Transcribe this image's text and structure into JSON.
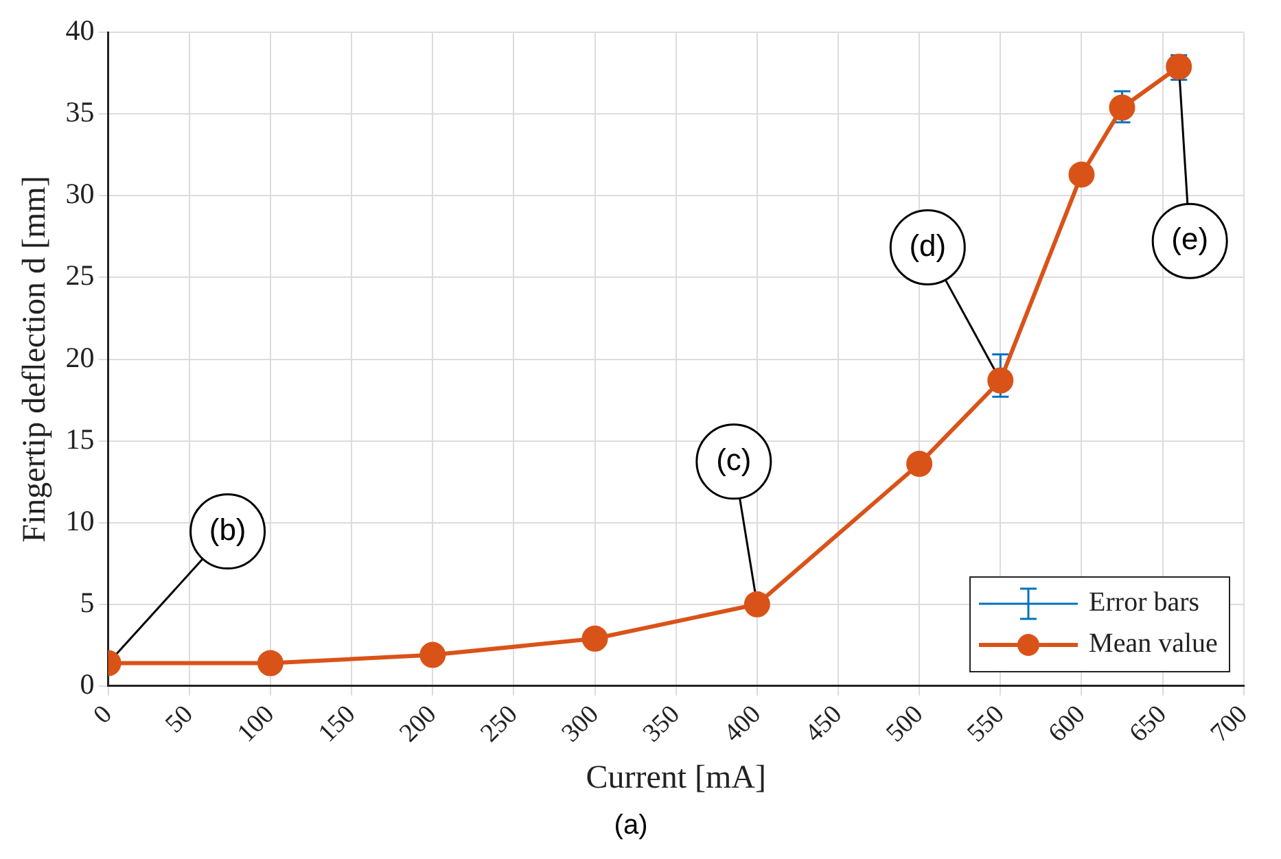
{
  "chart_data": {
    "type": "line",
    "title": "(a)",
    "xlabel": "Current [mA]",
    "ylabel": "Fingertip deflection d [mm]",
    "x": [
      0,
      100,
      200,
      300,
      400,
      500,
      550,
      600,
      625,
      660
    ],
    "series": [
      {
        "name": "Mean value",
        "color": "#d95319",
        "values": [
          1.4,
          1.4,
          1.9,
          2.9,
          5.0,
          13.6,
          18.7,
          31.3,
          35.4,
          37.9
        ],
        "errors": [
          null,
          null,
          null,
          null,
          null,
          null,
          [
            17.7,
            20.3
          ],
          null,
          [
            34.5,
            36.4
          ],
          [
            37.1,
            38.6
          ]
        ]
      }
    ],
    "annotations": [
      "Error bars",
      {
        "text": "(b)",
        "x": 0,
        "y": 1.4
      },
      {
        "text": "(c)",
        "x": 400,
        "y": 5.0
      },
      {
        "text": "(d)",
        "x": 550,
        "y": 18.7
      },
      {
        "text": "(e)",
        "x": 660,
        "y": 37.9
      }
    ],
    "xlim": [
      0,
      700
    ],
    "xticks": [
      0,
      50,
      100,
      150,
      200,
      250,
      300,
      350,
      400,
      450,
      500,
      550,
      600,
      650,
      700
    ],
    "ylim": [
      0,
      40
    ],
    "yticks": [
      0,
      5,
      10,
      15,
      20,
      25,
      30,
      35,
      40
    ],
    "grid": true,
    "legend": "bottom right",
    "marker": "circle",
    "line_style": "solid"
  }
}
